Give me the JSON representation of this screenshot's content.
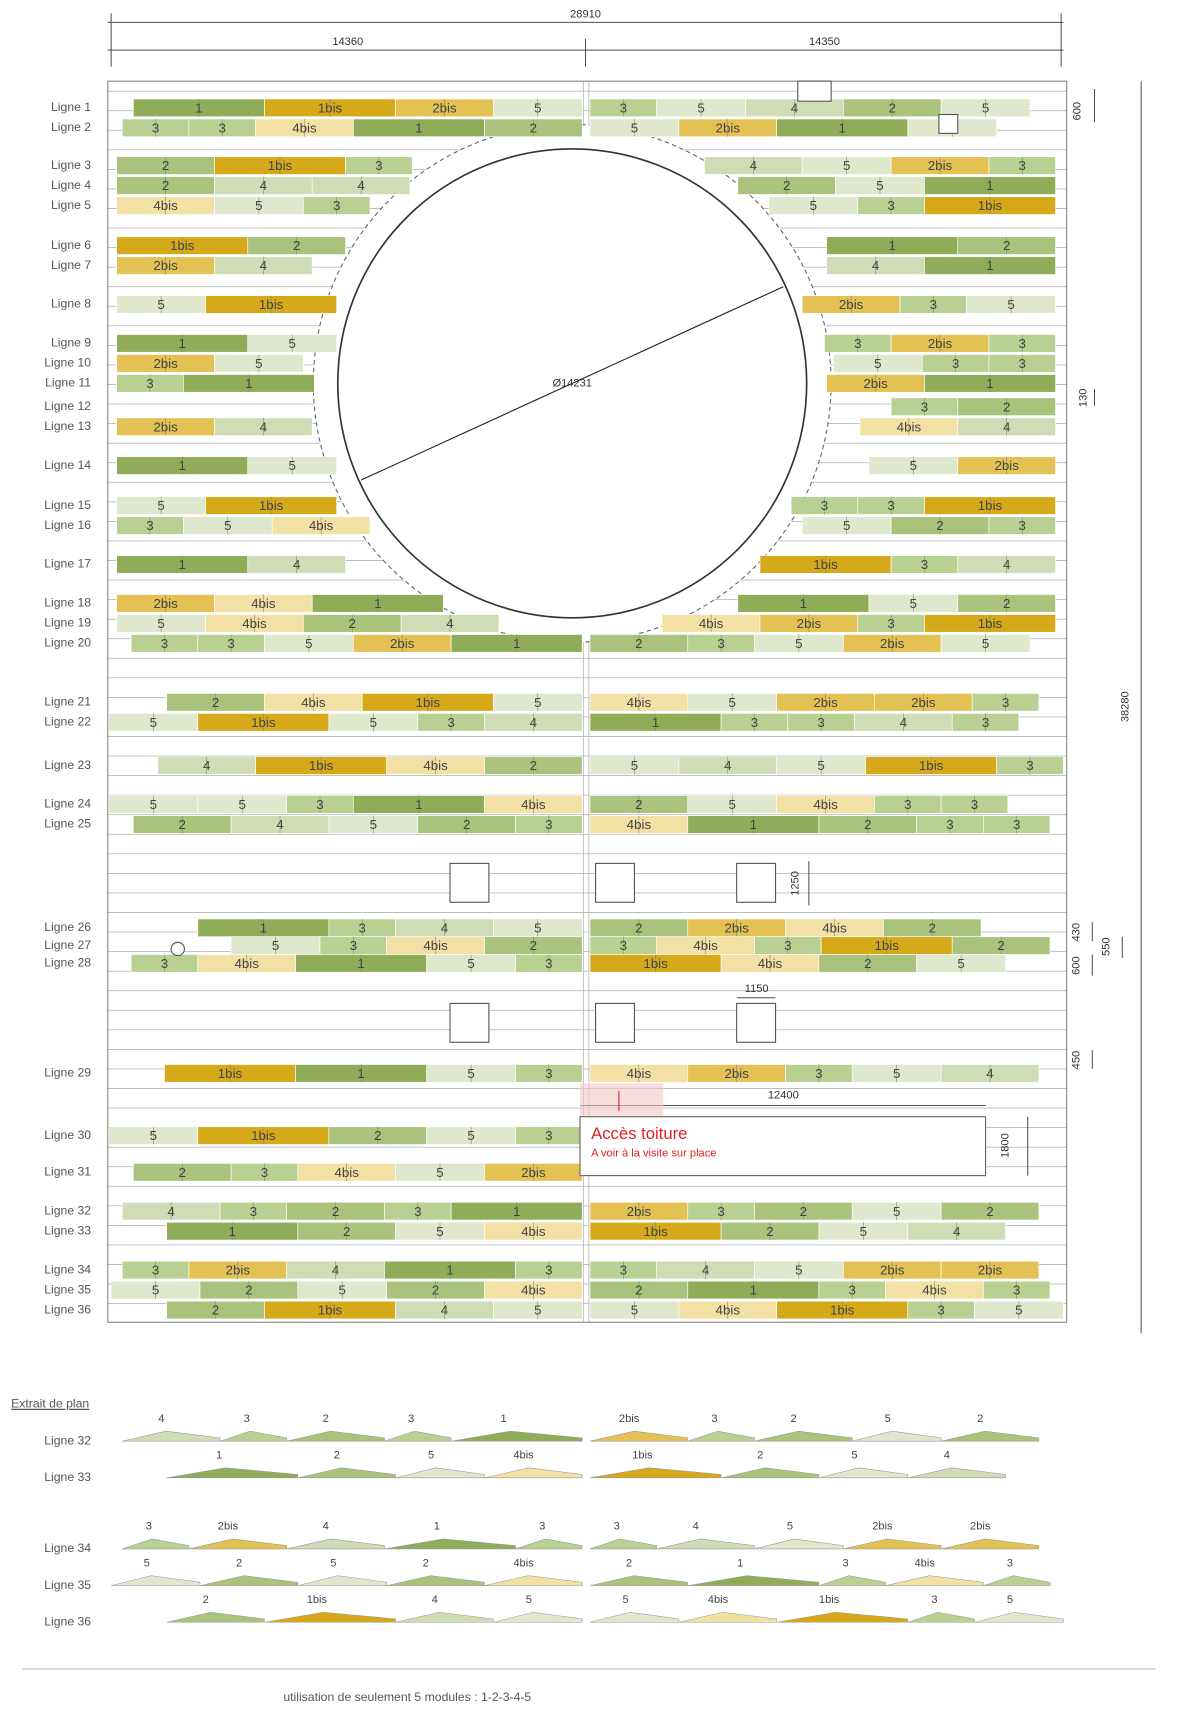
{
  "dimensions": {
    "overall_width": "28910",
    "left_width": "14360",
    "right_width": "14350",
    "overall_height": "38280",
    "row_height": "600",
    "gap": "130",
    "square_height": "1250",
    "band_a": "430",
    "band_b": "550",
    "band_c": "600",
    "square_width": "1150",
    "band_d": "450",
    "access_width": "12400",
    "access_height": "1800"
  },
  "circle": {
    "diameter": "Ø14231"
  },
  "access": {
    "title": "Accès toiture",
    "note": "A voir à la visite sur place"
  },
  "rows": [
    {
      "label": "Ligne 1",
      "left": [
        "1",
        "1bis",
        "2bis",
        "5"
      ],
      "right": [
        "3",
        "5",
        "4",
        "2",
        "5"
      ]
    },
    {
      "label": "Ligne 2",
      "left": [
        "3",
        "3",
        "4bis",
        "1",
        "2"
      ],
      "right": [
        "5",
        "2bis",
        "1",
        "5"
      ]
    },
    {
      "label": "Ligne 3",
      "left": [
        "2",
        "1bis",
        "3"
      ],
      "right": [
        "4",
        "5",
        "2bis",
        "3"
      ]
    },
    {
      "label": "Ligne 4",
      "left": [
        "2",
        "4",
        "4"
      ],
      "right": [
        "2",
        "5",
        "1"
      ]
    },
    {
      "label": "Ligne 5",
      "left": [
        "4bis",
        "5",
        "3"
      ],
      "right": [
        "5",
        "3",
        "1bis"
      ]
    },
    {
      "label": "Ligne 6",
      "left": [
        "1bis",
        "2"
      ],
      "right": [
        "1",
        "2"
      ]
    },
    {
      "label": "Ligne 7",
      "left": [
        "2bis",
        "4"
      ],
      "right": [
        "4",
        "1"
      ]
    },
    {
      "label": "Ligne 8",
      "left": [
        "5",
        "1bis"
      ],
      "right": [
        "2bis",
        "3",
        "5"
      ]
    },
    {
      "label": "Ligne 9",
      "left": [
        "1",
        "5"
      ],
      "right": [
        "3",
        "2bis",
        "3"
      ]
    },
    {
      "label": "Ligne 10",
      "left": [
        "2bis",
        "5"
      ],
      "right": [
        "5",
        "3",
        "3"
      ]
    },
    {
      "label": "Ligne 11",
      "left": [
        "3",
        "1"
      ],
      "right": [
        "2bis",
        "1"
      ]
    },
    {
      "label": "Ligne 12",
      "left": [],
      "right": [
        "3",
        "2"
      ]
    },
    {
      "label": "Ligne 13",
      "left": [
        "2bis",
        "4"
      ],
      "right": [
        "4bis",
        "4"
      ]
    },
    {
      "label": "Ligne 14",
      "left": [
        "1",
        "5"
      ],
      "right": [
        "5",
        "2bis"
      ]
    },
    {
      "label": "Ligne 15",
      "left": [
        "5",
        "1bis"
      ],
      "right": [
        "3",
        "3",
        "1bis"
      ]
    },
    {
      "label": "Ligne 16",
      "left": [
        "3",
        "5",
        "4bis"
      ],
      "right": [
        "5",
        "2",
        "3"
      ]
    },
    {
      "label": "Ligne 17",
      "left": [
        "1",
        "4"
      ],
      "right": [
        "1bis",
        "3",
        "4"
      ]
    },
    {
      "label": "Ligne 18",
      "left": [
        "2bis",
        "4bis",
        "1"
      ],
      "right": [
        "1",
        "5",
        "2"
      ]
    },
    {
      "label": "Ligne 19",
      "left": [
        "5",
        "4bis",
        "2",
        "4"
      ],
      "right": [
        "4bis",
        "2bis",
        "3",
        "1bis"
      ]
    },
    {
      "label": "Ligne 20",
      "left": [
        "3",
        "3",
        "5",
        "2bis",
        "1"
      ],
      "right": [
        "2",
        "3",
        "5",
        "2bis",
        "5"
      ]
    },
    {
      "label": "Ligne 21",
      "left": [
        "2",
        "4bis",
        "1bis",
        "5"
      ],
      "right": [
        "4bis",
        "5",
        "2bis",
        "2bis",
        "3"
      ]
    },
    {
      "label": "Ligne 22",
      "left": [
        "5",
        "1bis",
        "5",
        "3",
        "4"
      ],
      "right": [
        "1",
        "3",
        "3",
        "4",
        "3"
      ]
    },
    {
      "label": "Ligne 23",
      "left": [
        "4",
        "1bis",
        "4bis",
        "2"
      ],
      "right": [
        "5",
        "4",
        "5",
        "1bis",
        "3"
      ]
    },
    {
      "label": "Ligne 24",
      "left": [
        "5",
        "5",
        "3",
        "1",
        "4bis"
      ],
      "right": [
        "2",
        "5",
        "4bis",
        "3",
        "3"
      ]
    },
    {
      "label": "Ligne 25",
      "left": [
        "2",
        "4",
        "5",
        "2",
        "3"
      ],
      "right": [
        "4bis",
        "1",
        "2",
        "3",
        "3"
      ]
    },
    {
      "label": "Ligne 26",
      "left": [
        "1",
        "3",
        "4",
        "5"
      ],
      "right": [
        "2",
        "2bis",
        "4bis",
        "2"
      ]
    },
    {
      "label": "Ligne 27",
      "left": [
        "5",
        "3",
        "4bis",
        "2"
      ],
      "right": [
        "3",
        "4bis",
        "3",
        "1bis",
        "2"
      ]
    },
    {
      "label": "Ligne 28",
      "left": [
        "3",
        "4bis",
        "1",
        "5",
        "3"
      ],
      "right": [
        "1bis",
        "4bis",
        "2",
        "5"
      ]
    },
    {
      "label": "Ligne 29",
      "left": [
        "1bis",
        "1",
        "5",
        "3"
      ],
      "right": [
        "4bis",
        "2bis",
        "3",
        "5",
        "4"
      ]
    },
    {
      "label": "Ligne 30",
      "left": [
        "5",
        "1bis",
        "2",
        "5",
        "3"
      ],
      "right": []
    },
    {
      "label": "Ligne 31",
      "left": [
        "2",
        "3",
        "4bis",
        "5",
        "2bis"
      ],
      "right": []
    },
    {
      "label": "Ligne 32",
      "left": [
        "4",
        "3",
        "2",
        "3",
        "1"
      ],
      "right": [
        "2bis",
        "3",
        "2",
        "5",
        "2"
      ]
    },
    {
      "label": "Ligne 33",
      "left": [
        "1",
        "2",
        "5",
        "4bis"
      ],
      "right": [
        "1bis",
        "2",
        "5",
        "4"
      ]
    },
    {
      "label": "Ligne 34",
      "left": [
        "3",
        "2bis",
        "4",
        "1",
        "3"
      ],
      "right": [
        "3",
        "4",
        "5",
        "2bis",
        "2bis"
      ]
    },
    {
      "label": "Ligne 35",
      "left": [
        "5",
        "2",
        "5",
        "2",
        "4bis"
      ],
      "right": [
        "2",
        "1",
        "3",
        "4bis",
        "3"
      ]
    },
    {
      "label": "Ligne 36",
      "left": [
        "2",
        "1bis",
        "4",
        "5"
      ],
      "right": [
        "5",
        "4bis",
        "1bis",
        "3",
        "5"
      ]
    }
  ],
  "extract": {
    "title": "Extrait de plan"
  },
  "footer": {
    "note": "utilisation de seulement 5 modules : 1-2-3-4-5"
  }
}
